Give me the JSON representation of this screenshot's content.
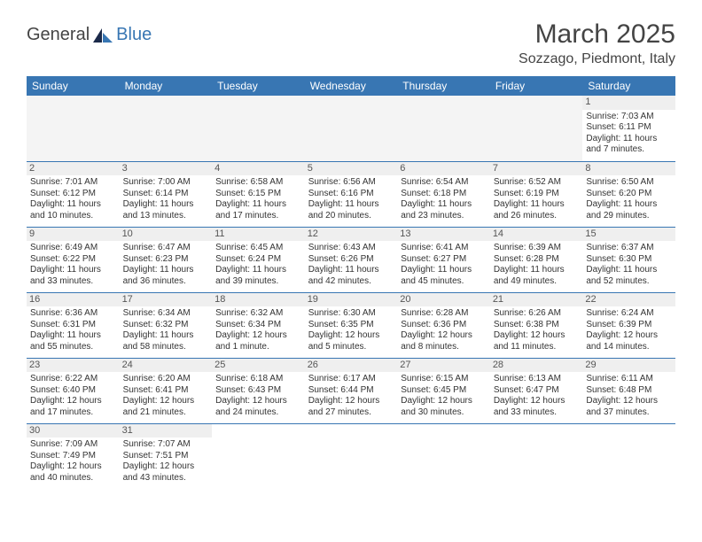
{
  "logo": {
    "text1": "General",
    "text2": "Blue",
    "brand_color": "#3876b3",
    "text_color": "#444444"
  },
  "title": "March 2025",
  "location": "Sozzago, Piedmont, Italy",
  "colors": {
    "header_bg": "#3876b3",
    "header_text": "#ffffff",
    "daynum_bg": "#efefef",
    "cell_border": "#3876b3",
    "body_text": "#333333",
    "empty_bg": "#f4f4f4"
  },
  "typography": {
    "title_fontsize": 30,
    "location_fontsize": 16,
    "dayheader_fontsize": 12,
    "cell_fontsize": 10
  },
  "calendar": {
    "type": "table",
    "columns": [
      "Sunday",
      "Monday",
      "Tuesday",
      "Wednesday",
      "Thursday",
      "Friday",
      "Saturday"
    ],
    "weeks": [
      [
        null,
        null,
        null,
        null,
        null,
        null,
        {
          "day": "1",
          "sunrise": "Sunrise: 7:03 AM",
          "sunset": "Sunset: 6:11 PM",
          "daylight": "Daylight: 11 hours and 7 minutes."
        }
      ],
      [
        {
          "day": "2",
          "sunrise": "Sunrise: 7:01 AM",
          "sunset": "Sunset: 6:12 PM",
          "daylight": "Daylight: 11 hours and 10 minutes."
        },
        {
          "day": "3",
          "sunrise": "Sunrise: 7:00 AM",
          "sunset": "Sunset: 6:14 PM",
          "daylight": "Daylight: 11 hours and 13 minutes."
        },
        {
          "day": "4",
          "sunrise": "Sunrise: 6:58 AM",
          "sunset": "Sunset: 6:15 PM",
          "daylight": "Daylight: 11 hours and 17 minutes."
        },
        {
          "day": "5",
          "sunrise": "Sunrise: 6:56 AM",
          "sunset": "Sunset: 6:16 PM",
          "daylight": "Daylight: 11 hours and 20 minutes."
        },
        {
          "day": "6",
          "sunrise": "Sunrise: 6:54 AM",
          "sunset": "Sunset: 6:18 PM",
          "daylight": "Daylight: 11 hours and 23 minutes."
        },
        {
          "day": "7",
          "sunrise": "Sunrise: 6:52 AM",
          "sunset": "Sunset: 6:19 PM",
          "daylight": "Daylight: 11 hours and 26 minutes."
        },
        {
          "day": "8",
          "sunrise": "Sunrise: 6:50 AM",
          "sunset": "Sunset: 6:20 PM",
          "daylight": "Daylight: 11 hours and 29 minutes."
        }
      ],
      [
        {
          "day": "9",
          "sunrise": "Sunrise: 6:49 AM",
          "sunset": "Sunset: 6:22 PM",
          "daylight": "Daylight: 11 hours and 33 minutes."
        },
        {
          "day": "10",
          "sunrise": "Sunrise: 6:47 AM",
          "sunset": "Sunset: 6:23 PM",
          "daylight": "Daylight: 11 hours and 36 minutes."
        },
        {
          "day": "11",
          "sunrise": "Sunrise: 6:45 AM",
          "sunset": "Sunset: 6:24 PM",
          "daylight": "Daylight: 11 hours and 39 minutes."
        },
        {
          "day": "12",
          "sunrise": "Sunrise: 6:43 AM",
          "sunset": "Sunset: 6:26 PM",
          "daylight": "Daylight: 11 hours and 42 minutes."
        },
        {
          "day": "13",
          "sunrise": "Sunrise: 6:41 AM",
          "sunset": "Sunset: 6:27 PM",
          "daylight": "Daylight: 11 hours and 45 minutes."
        },
        {
          "day": "14",
          "sunrise": "Sunrise: 6:39 AM",
          "sunset": "Sunset: 6:28 PM",
          "daylight": "Daylight: 11 hours and 49 minutes."
        },
        {
          "day": "15",
          "sunrise": "Sunrise: 6:37 AM",
          "sunset": "Sunset: 6:30 PM",
          "daylight": "Daylight: 11 hours and 52 minutes."
        }
      ],
      [
        {
          "day": "16",
          "sunrise": "Sunrise: 6:36 AM",
          "sunset": "Sunset: 6:31 PM",
          "daylight": "Daylight: 11 hours and 55 minutes."
        },
        {
          "day": "17",
          "sunrise": "Sunrise: 6:34 AM",
          "sunset": "Sunset: 6:32 PM",
          "daylight": "Daylight: 11 hours and 58 minutes."
        },
        {
          "day": "18",
          "sunrise": "Sunrise: 6:32 AM",
          "sunset": "Sunset: 6:34 PM",
          "daylight": "Daylight: 12 hours and 1 minute."
        },
        {
          "day": "19",
          "sunrise": "Sunrise: 6:30 AM",
          "sunset": "Sunset: 6:35 PM",
          "daylight": "Daylight: 12 hours and 5 minutes."
        },
        {
          "day": "20",
          "sunrise": "Sunrise: 6:28 AM",
          "sunset": "Sunset: 6:36 PM",
          "daylight": "Daylight: 12 hours and 8 minutes."
        },
        {
          "day": "21",
          "sunrise": "Sunrise: 6:26 AM",
          "sunset": "Sunset: 6:38 PM",
          "daylight": "Daylight: 12 hours and 11 minutes."
        },
        {
          "day": "22",
          "sunrise": "Sunrise: 6:24 AM",
          "sunset": "Sunset: 6:39 PM",
          "daylight": "Daylight: 12 hours and 14 minutes."
        }
      ],
      [
        {
          "day": "23",
          "sunrise": "Sunrise: 6:22 AM",
          "sunset": "Sunset: 6:40 PM",
          "daylight": "Daylight: 12 hours and 17 minutes."
        },
        {
          "day": "24",
          "sunrise": "Sunrise: 6:20 AM",
          "sunset": "Sunset: 6:41 PM",
          "daylight": "Daylight: 12 hours and 21 minutes."
        },
        {
          "day": "25",
          "sunrise": "Sunrise: 6:18 AM",
          "sunset": "Sunset: 6:43 PM",
          "daylight": "Daylight: 12 hours and 24 minutes."
        },
        {
          "day": "26",
          "sunrise": "Sunrise: 6:17 AM",
          "sunset": "Sunset: 6:44 PM",
          "daylight": "Daylight: 12 hours and 27 minutes."
        },
        {
          "day": "27",
          "sunrise": "Sunrise: 6:15 AM",
          "sunset": "Sunset: 6:45 PM",
          "daylight": "Daylight: 12 hours and 30 minutes."
        },
        {
          "day": "28",
          "sunrise": "Sunrise: 6:13 AM",
          "sunset": "Sunset: 6:47 PM",
          "daylight": "Daylight: 12 hours and 33 minutes."
        },
        {
          "day": "29",
          "sunrise": "Sunrise: 6:11 AM",
          "sunset": "Sunset: 6:48 PM",
          "daylight": "Daylight: 12 hours and 37 minutes."
        }
      ],
      [
        {
          "day": "30",
          "sunrise": "Sunrise: 7:09 AM",
          "sunset": "Sunset: 7:49 PM",
          "daylight": "Daylight: 12 hours and 40 minutes."
        },
        {
          "day": "31",
          "sunrise": "Sunrise: 7:07 AM",
          "sunset": "Sunset: 7:51 PM",
          "daylight": "Daylight: 12 hours and 43 minutes."
        },
        null,
        null,
        null,
        null,
        null
      ]
    ]
  }
}
